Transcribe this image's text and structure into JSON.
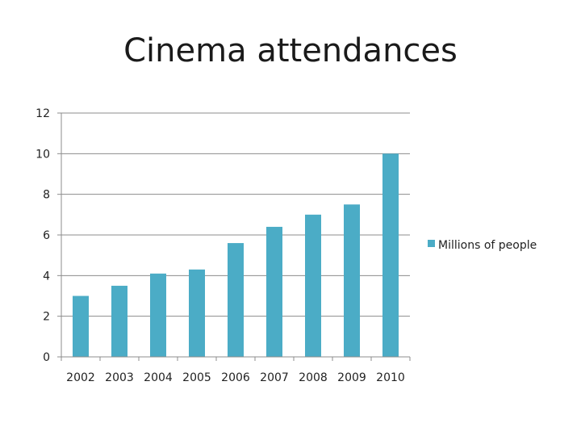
{
  "colors": {
    "bar": "#4BACC6",
    "grid": "#8c8c8c",
    "axis": "#8c8c8c"
  },
  "chart_data": {
    "type": "bar",
    "title": "Cinema attendances",
    "categories": [
      "2002",
      "2003",
      "2004",
      "2005",
      "2006",
      "2007",
      "2008",
      "2009",
      "2010"
    ],
    "series": [
      {
        "name": "Millions of people",
        "values": [
          3,
          3.5,
          4.1,
          4.3,
          5.6,
          6.4,
          7,
          7.5,
          10
        ]
      }
    ],
    "ylim": [
      0,
      12
    ],
    "yticks": [
      "0",
      "2",
      "4",
      "6",
      "8",
      "10",
      "12"
    ],
    "grid": true,
    "legend": "right"
  }
}
